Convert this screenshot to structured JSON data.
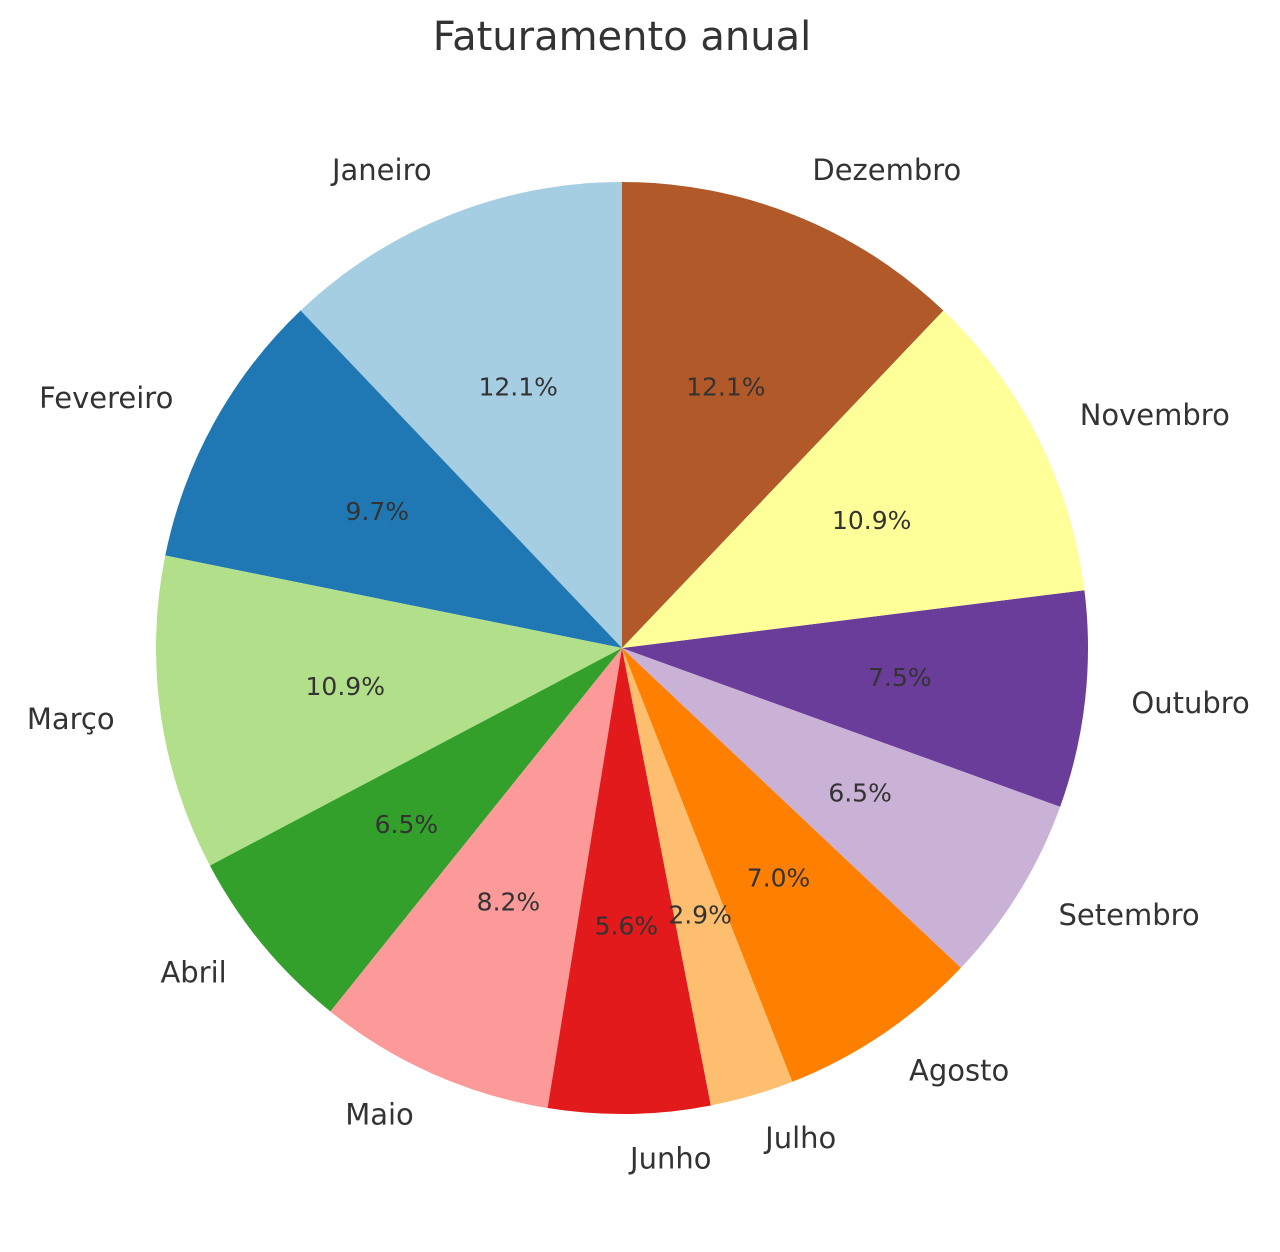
{
  "chart_data": {
    "type": "pie",
    "title": "Faturamento anual",
    "categories": [
      "Janeiro",
      "Fevereiro",
      "Março",
      "Abril",
      "Maio",
      "Junho",
      "Julho",
      "Agosto",
      "Setembro",
      "Outubro",
      "Novembro",
      "Dezembro"
    ],
    "values": [
      12.1,
      9.7,
      10.9,
      6.5,
      8.2,
      5.6,
      2.9,
      7.0,
      6.5,
      7.5,
      10.9,
      12.1
    ],
    "labels": [
      "12.1%",
      "9.7%",
      "10.9%",
      "6.5%",
      "8.2%",
      "5.6%",
      "2.9%",
      "7.0%",
      "6.5%",
      "7.5%",
      "10.9%",
      "12.1%"
    ],
    "colors": [
      "#a6cee3",
      "#1f78b4",
      "#b2df8a",
      "#33a02c",
      "#fb9a99",
      "#e31a1c",
      "#fdbf6f",
      "#ff7f00",
      "#cab2d6",
      "#6a3d9a",
      "#ffff99",
      "#b15928"
    ],
    "start": "top",
    "direction": "counterclockwise"
  }
}
